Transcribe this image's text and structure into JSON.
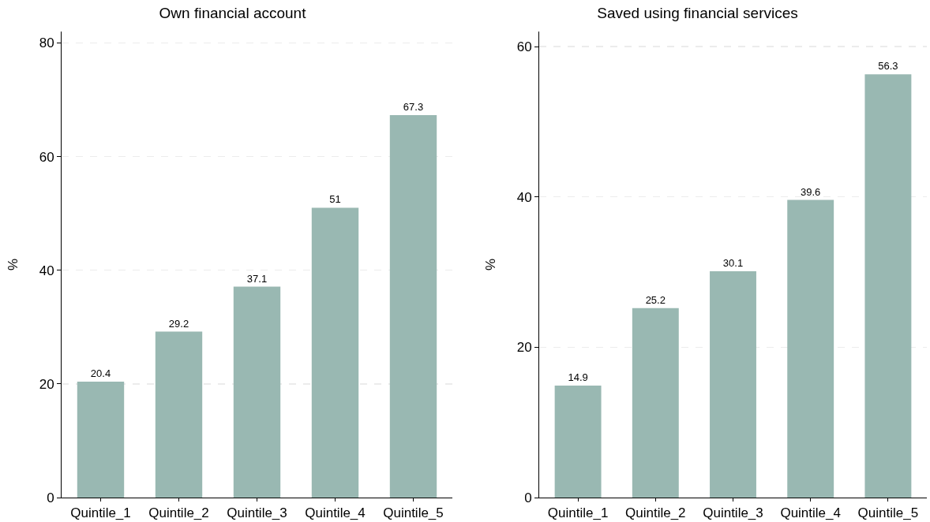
{
  "chart_data": [
    {
      "type": "bar",
      "title": "Own financial account",
      "ylabel": "%",
      "categories": [
        "Quintile_1",
        "Quintile_2",
        "Quintile_3",
        "Quintile_4",
        "Quintile_5"
      ],
      "values": [
        20.4,
        29.2,
        37.1,
        51,
        67.3
      ],
      "color": "#99b8b2",
      "ylim": [
        0,
        82
      ],
      "yticks": [
        0,
        20,
        40,
        60,
        80
      ],
      "grid": "y",
      "data_labels": true
    },
    {
      "type": "bar",
      "title": "Saved using financial services",
      "ylabel": "%",
      "categories": [
        "Quintile_1",
        "Quintile_2",
        "Quintile_3",
        "Quintile_4",
        "Quintile_5"
      ],
      "values": [
        14.9,
        25.2,
        30.1,
        39.6,
        56.3
      ],
      "color": "#99b8b2",
      "ylim": [
        0,
        62
      ],
      "yticks": [
        0,
        20,
        40,
        60
      ],
      "grid": "y",
      "data_labels": true
    }
  ]
}
